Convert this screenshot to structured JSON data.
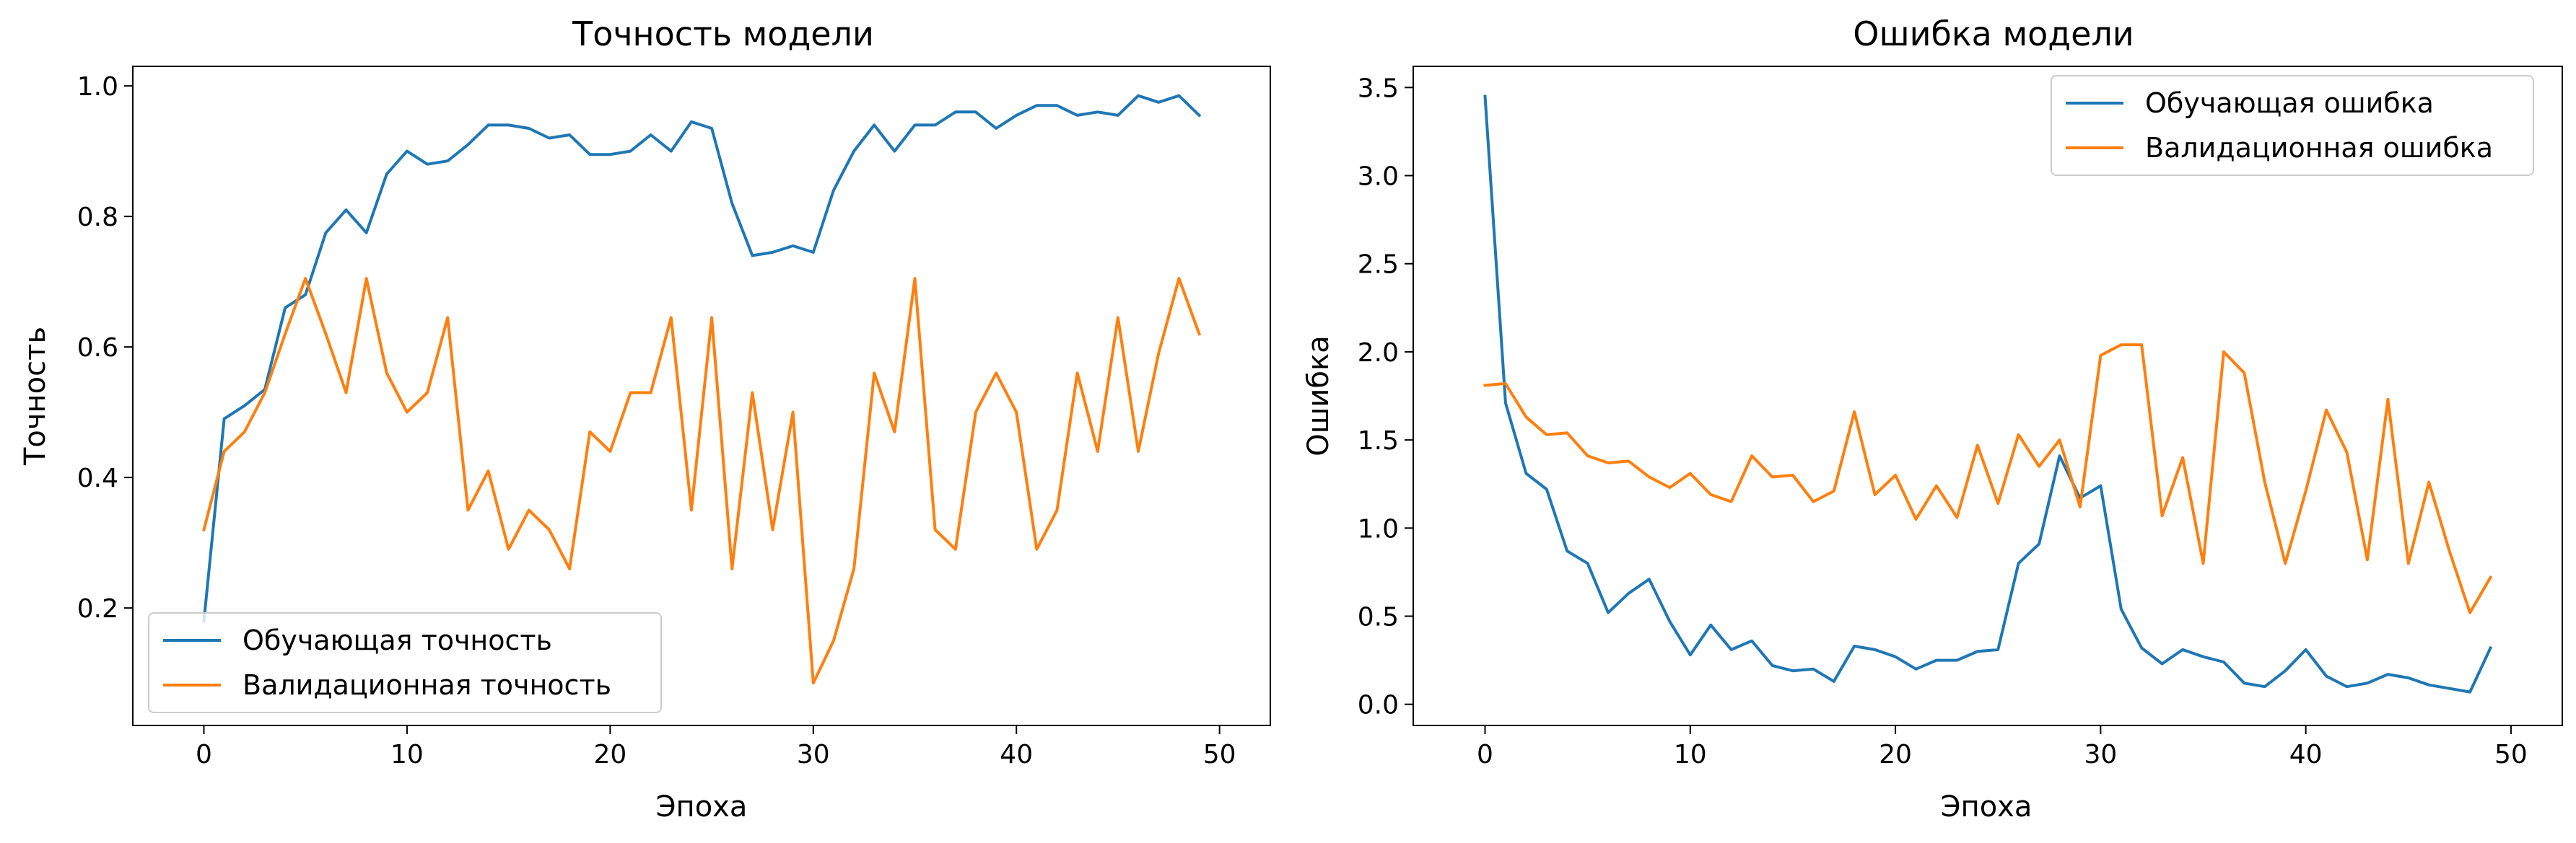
{
  "chart_data": [
    {
      "type": "line",
      "title": "Точность модели",
      "xlabel": "Эпоха",
      "ylabel": "Точность",
      "xlim": [
        -3.5,
        52.5
      ],
      "ylim": [
        0.02,
        1.03
      ],
      "xticks": [
        0,
        10,
        20,
        30,
        40,
        50
      ],
      "yticks": [
        0.2,
        0.4,
        0.6,
        0.8,
        1.0
      ],
      "ytick_labels": [
        "0.2",
        "0.4",
        "0.6",
        "0.8",
        "1.0"
      ],
      "legend": "lower-left",
      "x": [
        0,
        1,
        2,
        3,
        4,
        5,
        6,
        7,
        8,
        9,
        10,
        11,
        12,
        13,
        14,
        15,
        16,
        17,
        18,
        19,
        20,
        21,
        22,
        23,
        24,
        25,
        26,
        27,
        28,
        29,
        30,
        31,
        32,
        33,
        34,
        35,
        36,
        37,
        38,
        39,
        40,
        41,
        42,
        43,
        44,
        45,
        46,
        47,
        48,
        49
      ],
      "series": [
        {
          "name": "Обучающая точность",
          "color": "#1f77b4",
          "values": [
            0.18,
            0.49,
            0.51,
            0.535,
            0.66,
            0.68,
            0.775,
            0.81,
            0.775,
            0.865,
            0.9,
            0.88,
            0.885,
            0.91,
            0.94,
            0.94,
            0.935,
            0.92,
            0.925,
            0.895,
            0.895,
            0.9,
            0.925,
            0.9,
            0.945,
            0.935,
            0.82,
            0.74,
            0.745,
            0.755,
            0.745,
            0.84,
            0.9,
            0.94,
            0.9,
            0.94,
            0.94,
            0.96,
            0.96,
            0.935,
            0.955,
            0.97,
            0.97,
            0.955,
            0.96,
            0.955,
            0.985,
            0.975,
            0.985,
            0.955
          ]
        },
        {
          "name": "Валидационная точность",
          "color": "#ff7f0e",
          "values": [
            0.32,
            0.44,
            0.47,
            0.53,
            0.62,
            0.705,
            0.62,
            0.53,
            0.705,
            0.56,
            0.5,
            0.53,
            0.645,
            0.35,
            0.41,
            0.29,
            0.35,
            0.32,
            0.26,
            0.47,
            0.44,
            0.53,
            0.53,
            0.645,
            0.35,
            0.645,
            0.26,
            0.53,
            0.32,
            0.5,
            0.085,
            0.15,
            0.26,
            0.56,
            0.47,
            0.705,
            0.32,
            0.29,
            0.5,
            0.56,
            0.5,
            0.29,
            0.35,
            0.56,
            0.44,
            0.645,
            0.44,
            0.59,
            0.705,
            0.62
          ]
        }
      ]
    },
    {
      "type": "line",
      "title": "Ошибка модели",
      "xlabel": "Эпоха",
      "ylabel": "Ошибка",
      "xlim": [
        -3.5,
        52.5
      ],
      "ylim": [
        -0.12,
        3.62
      ],
      "xticks": [
        0,
        10,
        20,
        30,
        40,
        50
      ],
      "yticks": [
        0.0,
        0.5,
        1.0,
        1.5,
        2.0,
        2.5,
        3.0,
        3.5
      ],
      "ytick_labels": [
        "0.0",
        "0.5",
        "1.0",
        "1.5",
        "2.0",
        "2.5",
        "3.0",
        "3.5"
      ],
      "legend": "upper-right",
      "x": [
        0,
        1,
        2,
        3,
        4,
        5,
        6,
        7,
        8,
        9,
        10,
        11,
        12,
        13,
        14,
        15,
        16,
        17,
        18,
        19,
        20,
        21,
        22,
        23,
        24,
        25,
        26,
        27,
        28,
        29,
        30,
        31,
        32,
        33,
        34,
        35,
        36,
        37,
        38,
        39,
        40,
        41,
        42,
        43,
        44,
        45,
        46,
        47,
        48,
        49
      ],
      "series": [
        {
          "name": "Обучающая ошибка",
          "color": "#1f77b4",
          "values": [
            3.45,
            1.71,
            1.31,
            1.22,
            0.87,
            0.8,
            0.52,
            0.63,
            0.71,
            0.47,
            0.28,
            0.45,
            0.31,
            0.36,
            0.22,
            0.19,
            0.2,
            0.13,
            0.33,
            0.31,
            0.27,
            0.2,
            0.25,
            0.25,
            0.3,
            0.31,
            0.8,
            0.91,
            1.41,
            1.17,
            1.24,
            0.54,
            0.32,
            0.23,
            0.31,
            0.27,
            0.24,
            0.12,
            0.1,
            0.19,
            0.31,
            0.16,
            0.1,
            0.12,
            0.17,
            0.15,
            0.11,
            0.09,
            0.07,
            0.32
          ]
        },
        {
          "name": "Валидационная ошибка",
          "color": "#ff7f0e",
          "values": [
            1.81,
            1.82,
            1.63,
            1.53,
            1.54,
            1.41,
            1.37,
            1.38,
            1.29,
            1.23,
            1.31,
            1.19,
            1.15,
            1.41,
            1.29,
            1.3,
            1.15,
            1.21,
            1.66,
            1.19,
            1.3,
            1.05,
            1.24,
            1.06,
            1.47,
            1.14,
            1.53,
            1.35,
            1.5,
            1.12,
            1.98,
            2.04,
            2.04,
            1.07,
            1.4,
            0.8,
            2.0,
            1.88,
            1.26,
            0.8,
            1.21,
            1.67,
            1.43,
            0.82,
            1.73,
            0.8,
            1.26,
            0.87,
            0.52,
            0.72
          ]
        }
      ]
    }
  ]
}
